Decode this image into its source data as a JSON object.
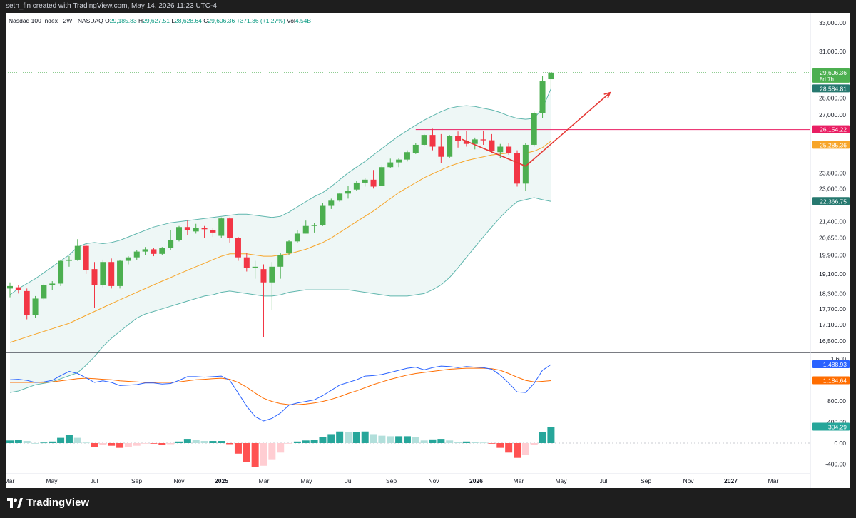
{
  "header": {
    "credit": "seth_fin created with TradingView.com, May 14, 2026 11:23 UTC-4"
  },
  "legend": {
    "title": "Nasdaq 100 Index · 2W · NASDAQ",
    "o_label": "O",
    "o": "29,185.83",
    "h_label": "H",
    "h": "29,627.51",
    "l_label": "L",
    "l": "28,628.64",
    "c_label": "C",
    "c": "29,606.36",
    "change": "+371.36 (+1.27%)",
    "vol_label": "Vol",
    "vol": "4.54B"
  },
  "footer": {
    "brand": "TradingView"
  },
  "colors": {
    "up": "#4caf50",
    "down": "#f23645",
    "basis": "#f7a529",
    "band": "#5fb6ad",
    "band_fill": "#eef7f6",
    "macd": "#2962ff",
    "signal": "#ff6d00",
    "hist_up_strong": "#26a69a",
    "hist_up_weak": "#b2dfdb",
    "hist_down_strong": "#ff5252",
    "hist_down_weak": "#ffcdd2",
    "resistance": "#e91e63",
    "arrow": "#e53935"
  },
  "chart_data": {
    "type": "candlestick",
    "title": "Nasdaq 100 Index · 2W · NASDAQ",
    "price_axis": {
      "ticks": [
        33000,
        31000,
        28000,
        27000,
        23800,
        23000,
        21400,
        20650,
        19900,
        19100,
        18300,
        17700,
        17100,
        16500
      ],
      "tick_labels": [
        "33,000.00",
        "31,000.00",
        "28,000.00",
        "27,000.00",
        "23,800.00",
        "23,000.00",
        "21,400.00",
        "20,650.00",
        "19,900.00",
        "19,100.00",
        "18,300.00",
        "17,700.00",
        "17,100.00",
        "16,500.00"
      ],
      "scale": "log"
    },
    "x_labels": [
      "Mar",
      "May",
      "Jul",
      "Sep",
      "Nov",
      "2025",
      "Mar",
      "May",
      "Jul",
      "Sep",
      "Nov",
      "2026",
      "Mar",
      "May",
      "Jul",
      "Sep",
      "Nov",
      "2027",
      "Mar"
    ],
    "candles": [
      {
        "o": 18500,
        "h": 18750,
        "l": 18150,
        "c": 18600
      },
      {
        "o": 18550,
        "h": 18650,
        "l": 18300,
        "c": 18450
      },
      {
        "o": 18400,
        "h": 18500,
        "l": 17300,
        "c": 17450
      },
      {
        "o": 17450,
        "h": 18200,
        "l": 17350,
        "c": 18100
      },
      {
        "o": 18100,
        "h": 18700,
        "l": 18050,
        "c": 18650
      },
      {
        "o": 18650,
        "h": 18800,
        "l": 18450,
        "c": 18700
      },
      {
        "o": 18700,
        "h": 19700,
        "l": 18600,
        "c": 19650
      },
      {
        "o": 19650,
        "h": 19850,
        "l": 19400,
        "c": 19700
      },
      {
        "o": 19700,
        "h": 20600,
        "l": 19650,
        "c": 20300
      },
      {
        "o": 20300,
        "h": 20400,
        "l": 19100,
        "c": 19250
      },
      {
        "o": 19300,
        "h": 19600,
        "l": 17750,
        "c": 18650
      },
      {
        "o": 18650,
        "h": 19700,
        "l": 18550,
        "c": 19600
      },
      {
        "o": 19600,
        "h": 19750,
        "l": 18500,
        "c": 18600
      },
      {
        "o": 18600,
        "h": 19700,
        "l": 18500,
        "c": 19650
      },
      {
        "o": 19650,
        "h": 19850,
        "l": 19500,
        "c": 19800
      },
      {
        "o": 19800,
        "h": 20100,
        "l": 19700,
        "c": 20050
      },
      {
        "o": 20050,
        "h": 20250,
        "l": 19900,
        "c": 20150
      },
      {
        "o": 20150,
        "h": 20200,
        "l": 19850,
        "c": 19950
      },
      {
        "o": 19950,
        "h": 20250,
        "l": 19900,
        "c": 20200
      },
      {
        "o": 20200,
        "h": 21000,
        "l": 20100,
        "c": 20550
      },
      {
        "o": 20550,
        "h": 21200,
        "l": 20500,
        "c": 21150
      },
      {
        "o": 21150,
        "h": 21450,
        "l": 20800,
        "c": 21000
      },
      {
        "o": 20950,
        "h": 21300,
        "l": 20850,
        "c": 21100
      },
      {
        "o": 21100,
        "h": 21200,
        "l": 20650,
        "c": 21050
      },
      {
        "o": 21000,
        "h": 21100,
        "l": 20700,
        "c": 20900
      },
      {
        "o": 20750,
        "h": 21600,
        "l": 20650,
        "c": 21550
      },
      {
        "o": 21550,
        "h": 21600,
        "l": 20450,
        "c": 20650
      },
      {
        "o": 20650,
        "h": 20700,
        "l": 19650,
        "c": 19800
      },
      {
        "o": 19800,
        "h": 20000,
        "l": 19200,
        "c": 19350
      },
      {
        "o": 19350,
        "h": 19650,
        "l": 18900,
        "c": 19400
      },
      {
        "o": 19300,
        "h": 19500,
        "l": 16650,
        "c": 18750
      },
      {
        "o": 18750,
        "h": 19600,
        "l": 17650,
        "c": 19400
      },
      {
        "o": 19400,
        "h": 20000,
        "l": 18900,
        "c": 19900
      },
      {
        "o": 20000,
        "h": 20550,
        "l": 19900,
        "c": 20500
      },
      {
        "o": 20500,
        "h": 21000,
        "l": 20450,
        "c": 20850
      },
      {
        "o": 20850,
        "h": 21450,
        "l": 20850,
        "c": 21200
      },
      {
        "o": 21200,
        "h": 21350,
        "l": 20900,
        "c": 21250
      },
      {
        "o": 21250,
        "h": 22300,
        "l": 21200,
        "c": 22150
      },
      {
        "o": 22150,
        "h": 22500,
        "l": 22000,
        "c": 22400
      },
      {
        "o": 22400,
        "h": 22800,
        "l": 22350,
        "c": 22750
      },
      {
        "o": 22750,
        "h": 23150,
        "l": 22500,
        "c": 22900
      },
      {
        "o": 22950,
        "h": 23400,
        "l": 22900,
        "c": 23300
      },
      {
        "o": 23300,
        "h": 23550,
        "l": 23100,
        "c": 23450
      },
      {
        "o": 23450,
        "h": 23950,
        "l": 23000,
        "c": 23100
      },
      {
        "o": 23150,
        "h": 24200,
        "l": 23150,
        "c": 24100
      },
      {
        "o": 24100,
        "h": 24550,
        "l": 24050,
        "c": 24350
      },
      {
        "o": 24350,
        "h": 24600,
        "l": 24100,
        "c": 24500
      },
      {
        "o": 24500,
        "h": 25000,
        "l": 24400,
        "c": 24900
      },
      {
        "o": 24850,
        "h": 25400,
        "l": 24800,
        "c": 25300
      },
      {
        "o": 25300,
        "h": 25900,
        "l": 25250,
        "c": 25850
      },
      {
        "o": 25850,
        "h": 26200,
        "l": 25000,
        "c": 25200
      },
      {
        "o": 25200,
        "h": 25900,
        "l": 24300,
        "c": 24650
      },
      {
        "o": 24650,
        "h": 25850,
        "l": 24600,
        "c": 25800
      },
      {
        "o": 25800,
        "h": 26050,
        "l": 25150,
        "c": 25500
      },
      {
        "o": 25500,
        "h": 26100,
        "l": 25200,
        "c": 25350
      },
      {
        "o": 25350,
        "h": 25700,
        "l": 25050,
        "c": 25600
      },
      {
        "o": 25600,
        "h": 26100,
        "l": 25300,
        "c": 25550
      },
      {
        "o": 25550,
        "h": 25900,
        "l": 24850,
        "c": 24950
      },
      {
        "o": 24900,
        "h": 25350,
        "l": 24600,
        "c": 25200
      },
      {
        "o": 25200,
        "h": 25400,
        "l": 24750,
        "c": 24850
      },
      {
        "o": 24850,
        "h": 25000,
        "l": 23100,
        "c": 23250
      },
      {
        "o": 23250,
        "h": 25400,
        "l": 22900,
        "c": 25300
      },
      {
        "o": 25300,
        "h": 27200,
        "l": 25200,
        "c": 27100
      },
      {
        "o": 27100,
        "h": 29400,
        "l": 26800,
        "c": 29050
      },
      {
        "o": 29185.83,
        "h": 29627.51,
        "l": 28628.64,
        "c": 29606.36
      }
    ],
    "bollinger": {
      "basis": [
        16450,
        16550,
        16650,
        16750,
        16850,
        16950,
        17050,
        17150,
        17300,
        17450,
        17600,
        17750,
        17900,
        18050,
        18200,
        18350,
        18500,
        18650,
        18800,
        18950,
        19100,
        19250,
        19400,
        19550,
        19700,
        19850,
        19950,
        19950,
        19950,
        19900,
        19850,
        19850,
        19900,
        19950,
        20050,
        20150,
        20300,
        20450,
        20650,
        20900,
        21150,
        21400,
        21650,
        21900,
        22200,
        22500,
        22800,
        23050,
        23300,
        23550,
        23750,
        23950,
        24150,
        24300,
        24450,
        24550,
        24650,
        24750,
        24800,
        24850,
        24850,
        24850,
        24950,
        25150,
        25500
      ],
      "upper": [
        18250,
        18500,
        18700,
        18900,
        19150,
        19400,
        19650,
        19900,
        20250,
        20400,
        20450,
        20400,
        20450,
        20550,
        20700,
        20850,
        21000,
        21150,
        21250,
        21350,
        21400,
        21450,
        21500,
        21550,
        21600,
        21650,
        21700,
        21750,
        21750,
        21700,
        21650,
        21600,
        21650,
        21850,
        22100,
        22350,
        22600,
        22800,
        23100,
        23450,
        23800,
        24100,
        24400,
        24750,
        25100,
        25450,
        25800,
        26100,
        26400,
        26700,
        26950,
        27200,
        27400,
        27500,
        27550,
        27500,
        27400,
        27300,
        27150,
        26950,
        26800,
        26750,
        26800,
        27400,
        28584.81
      ],
      "lower": [
        14750,
        14800,
        14900,
        15000,
        15050,
        15100,
        15200,
        15300,
        15400,
        15650,
        15950,
        16300,
        16600,
        16850,
        17100,
        17350,
        17500,
        17600,
        17700,
        17800,
        17900,
        18000,
        18100,
        18200,
        18250,
        18350,
        18400,
        18350,
        18300,
        18250,
        18200,
        18200,
        18250,
        18350,
        18400,
        18450,
        18450,
        18450,
        18450,
        18450,
        18450,
        18400,
        18350,
        18300,
        18250,
        18200,
        18200,
        18200,
        18250,
        18300,
        18450,
        18650,
        18950,
        19350,
        19800,
        20250,
        20700,
        21150,
        21600,
        22000,
        22350,
        22450,
        22550,
        22450,
        22366.75
      ]
    },
    "price_labels": [
      {
        "label": "29,606.36",
        "sub": "8d 7h",
        "value": 29606.36,
        "color": "#4caf50"
      },
      {
        "label": "28,584.81",
        "value": 28584.81,
        "color": "#26786f"
      },
      {
        "label": "26,154.22",
        "value": 26154.22,
        "color": "#e91e63"
      },
      {
        "label": "25,285.36",
        "value": 25285.36,
        "color": "#f7a529"
      },
      {
        "label": "22,366.75",
        "value": 22366.75,
        "color": "#26786f"
      }
    ],
    "resistance_level": 26154.22,
    "arrow": {
      "start_candle": 53.5,
      "start_price": 25600,
      "mid_candle": 61.0,
      "mid_price": 24150,
      "end_candle": 71.0,
      "end_price": 28350
    },
    "macd": {
      "ticks": [
        1600,
        800,
        400,
        0,
        -400
      ],
      "tick_labels": [
        "1,600",
        "800.00",
        "400.00",
        "0.00",
        "-400.00"
      ],
      "macd_line": [
        1200,
        1210,
        1190,
        1150,
        1160,
        1190,
        1280,
        1360,
        1320,
        1240,
        1150,
        1180,
        1150,
        1090,
        1100,
        1110,
        1140,
        1140,
        1120,
        1130,
        1190,
        1260,
        1260,
        1250,
        1260,
        1270,
        1190,
        950,
        700,
        500,
        420,
        470,
        570,
        720,
        760,
        790,
        820,
        900,
        1000,
        1100,
        1150,
        1200,
        1270,
        1280,
        1300,
        1340,
        1380,
        1420,
        1440,
        1390,
        1430,
        1460,
        1450,
        1430,
        1450,
        1440,
        1430,
        1400,
        1290,
        1140,
        970,
        960,
        1130,
        1380,
        1488.93
      ],
      "signal_line": [
        1150,
        1150,
        1150,
        1150,
        1150,
        1160,
        1180,
        1200,
        1220,
        1230,
        1220,
        1210,
        1200,
        1180,
        1170,
        1160,
        1150,
        1150,
        1150,
        1150,
        1160,
        1180,
        1200,
        1210,
        1220,
        1230,
        1210,
        1150,
        1060,
        950,
        850,
        790,
        750,
        730,
        730,
        740,
        760,
        790,
        830,
        880,
        940,
        990,
        1050,
        1110,
        1160,
        1210,
        1250,
        1290,
        1320,
        1340,
        1360,
        1380,
        1400,
        1410,
        1420,
        1420,
        1420,
        1410,
        1380,
        1320,
        1250,
        1190,
        1160,
        1170,
        1184.64
      ],
      "histogram": [
        50,
        60,
        40,
        0,
        10,
        30,
        100,
        160,
        100,
        10,
        -70,
        -30,
        -50,
        -90,
        -70,
        -50,
        -10,
        -10,
        -30,
        -20,
        30,
        80,
        60,
        40,
        40,
        40,
        -20,
        -200,
        -360,
        -450,
        -430,
        -320,
        -180,
        -10,
        30,
        50,
        60,
        110,
        170,
        220,
        210,
        210,
        220,
        170,
        140,
        130,
        130,
        130,
        120,
        50,
        70,
        80,
        50,
        20,
        30,
        20,
        10,
        -10,
        -90,
        -180,
        -280,
        -230,
        -30,
        210,
        304.29
      ],
      "labels": [
        {
          "label": "1,488.93",
          "value": 1488.93,
          "color": "#2962ff"
        },
        {
          "label": "1,184.64",
          "value": 1184.64,
          "color": "#ff6d00"
        },
        {
          "label": "304.29",
          "value": 304.29,
          "color": "#26a69a"
        }
      ]
    }
  }
}
